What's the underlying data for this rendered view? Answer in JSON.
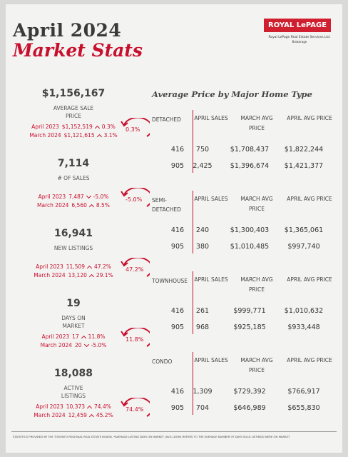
{
  "header": {
    "title_line1": "April 2024",
    "title_line2": "Market Stats",
    "logo": "ROYAL LePAGE",
    "logo_sub": "Royal LePage Real Estate Services Ltd.",
    "logo_sub2": "Brokerage"
  },
  "stats": [
    {
      "value": "$1,156,167",
      "label": "AVERAGE SALE PRICE",
      "badge": "0.3%",
      "comparisons": [
        {
          "label": "April 2023",
          "value": "$1,152,519",
          "direction": "up",
          "change": "0.3%"
        },
        {
          "label": "March 2024",
          "value": "$1,121,615",
          "direction": "up",
          "change": "3.1%"
        }
      ]
    },
    {
      "value": "7,114",
      "label": "# OF SALES",
      "badge": "-5.0%",
      "comparisons": [
        {
          "label": "April 2023",
          "value": "7,487",
          "direction": "down",
          "change": "-5.0%"
        },
        {
          "label": "March 2024",
          "value": "6,560",
          "direction": "up",
          "change": "8.5%"
        }
      ]
    },
    {
      "value": "16,941",
      "label": "NEW LISTINGS",
      "badge": "47.2%",
      "comparisons": [
        {
          "label": "April 2023",
          "value": "11,509",
          "direction": "up",
          "change": "47.2%"
        },
        {
          "label": "March 2024",
          "value": "13,120",
          "direction": "up",
          "change": "29.1%"
        }
      ]
    },
    {
      "value": "19",
      "label": "DAYS ON MARKET",
      "badge": "11.8%",
      "comparisons": [
        {
          "label": "April 2023",
          "value": "17",
          "direction": "up",
          "change": "11.8%"
        },
        {
          "label": "March 2024",
          "value": "20",
          "direction": "down",
          "change": "-5.0%"
        }
      ]
    },
    {
      "value": "18,088",
      "label": "ACTIVE LISTINGS",
      "badge": "74.4%",
      "comparisons": [
        {
          "label": "April 2023",
          "value": "10,373",
          "direction": "up",
          "change": "74.4%"
        },
        {
          "label": "March 2024",
          "value": "12,459",
          "direction": "up",
          "change": "45.2%"
        }
      ]
    }
  ],
  "price_tables": {
    "heading": "Average Price by Major Home Type",
    "columns": [
      "APRIL SALES",
      "MARCH AVG PRICE",
      "APRIL AVG PRICE"
    ],
    "tables": [
      {
        "type": "DETACHED",
        "rows": [
          [
            "416",
            "750",
            "$1,708,437",
            "$1,822,244"
          ],
          [
            "905",
            "2,425",
            "$1,396,674",
            "$1,421,377"
          ]
        ]
      },
      {
        "type": "SEMI-DETACHED",
        "rows": [
          [
            "416",
            "240",
            "$1,300,403",
            "$1,365,061"
          ],
          [
            "905",
            "380",
            "$1,010,485",
            "$997,740"
          ]
        ]
      },
      {
        "type": "TOWNHOUSE",
        "rows": [
          [
            "416",
            "261",
            "$999,771",
            "$1,010,632"
          ],
          [
            "905",
            "968",
            "$925,185",
            "$933,448"
          ]
        ]
      },
      {
        "type": "CONDO",
        "rows": [
          [
            "416",
            "1,309",
            "$729,392",
            "$766,917"
          ],
          [
            "905",
            "704",
            "$646,989",
            "$655,830"
          ]
        ]
      }
    ]
  },
  "footer": "STATISTICS PROVIDED BY THE TORONTO REGIONAL REAL ESTATE BOARD. *AVERAGE LISTING DAYS ON MARKET (AVG LDOM) REFERS TO THE AVERAGE NUMBER OF DAYS SOLD LISTINGS WERE ON MARKET"
}
